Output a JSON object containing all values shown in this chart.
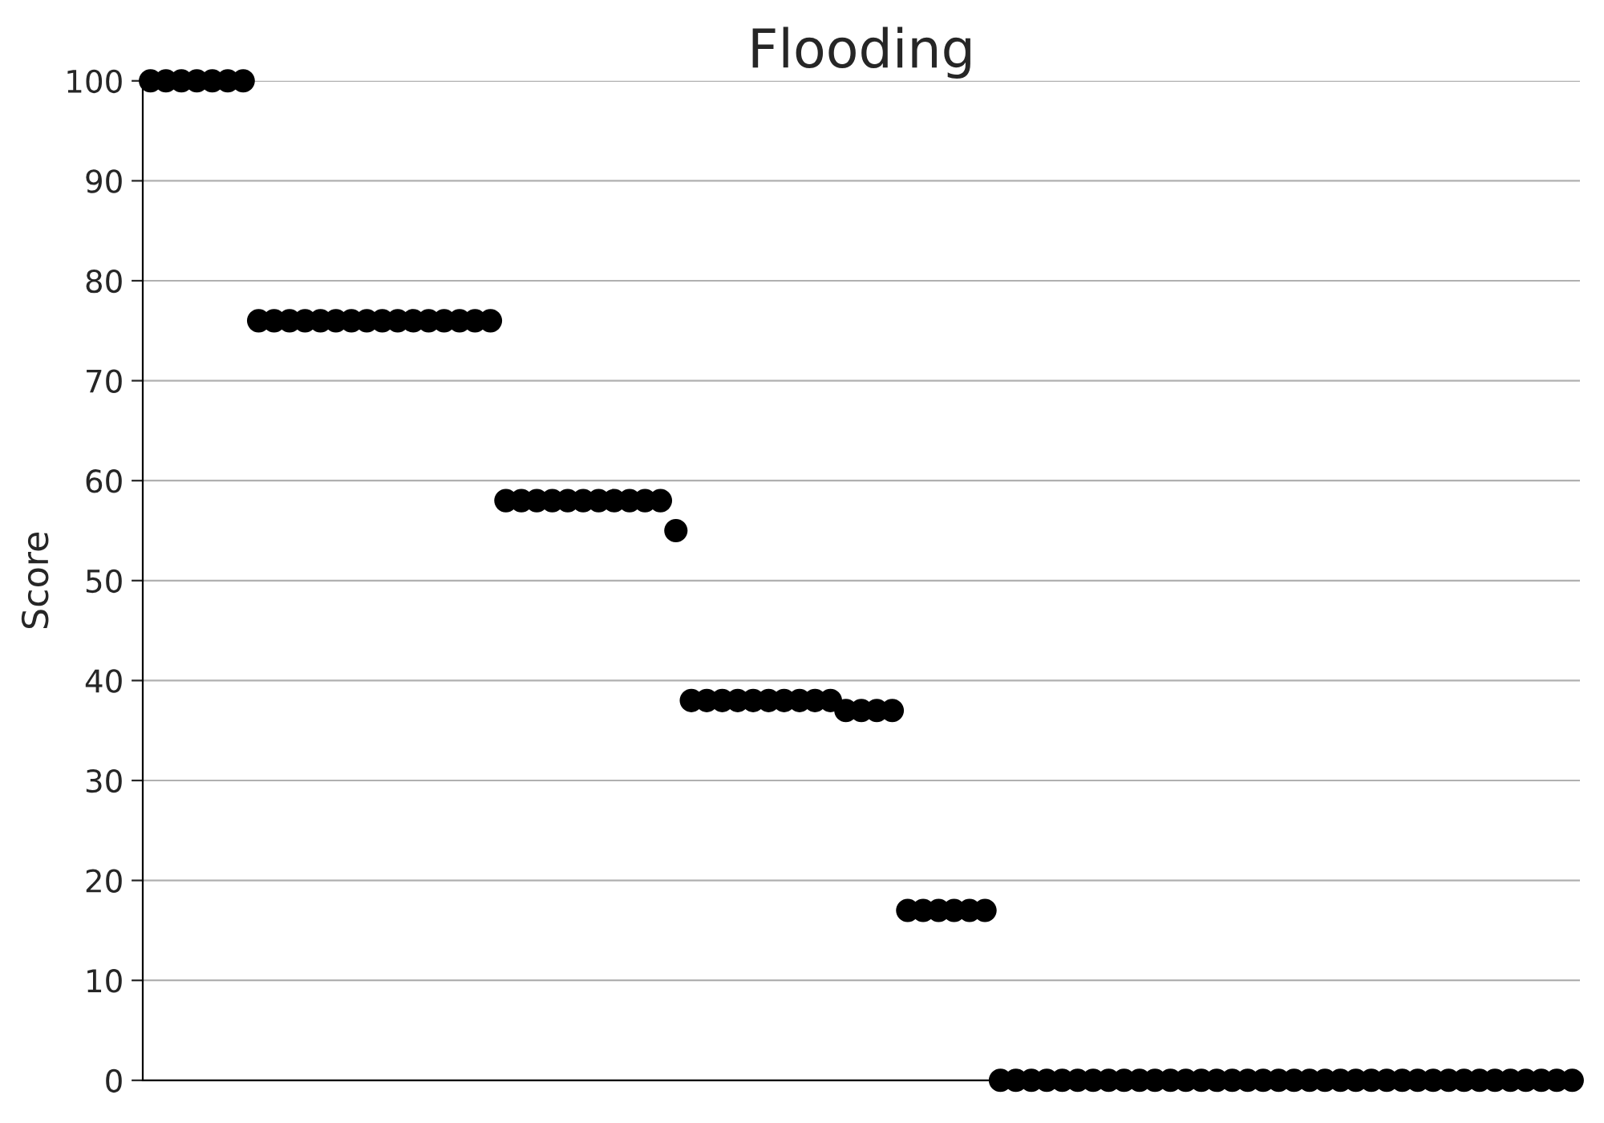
{
  "chart_data": {
    "type": "scatter",
    "title": "Flooding",
    "ylabel": "Score",
    "categories": [
      null,
      null,
      null,
      null,
      null,
      null,
      null,
      null,
      null,
      null,
      null,
      null,
      null,
      null,
      null,
      null,
      null,
      null,
      null,
      null,
      null,
      null,
      null,
      null,
      null,
      null,
      null,
      null,
      null,
      null,
      null,
      null,
      null,
      null,
      null,
      null,
      null,
      null,
      null,
      null,
      null,
      null,
      null,
      null,
      null,
      null,
      null,
      null,
      null,
      null,
      null,
      null,
      null,
      null,
      null,
      null,
      null,
      null,
      null,
      null,
      null,
      null,
      null,
      null,
      null,
      null,
      null,
      null,
      null,
      null,
      null,
      null,
      null,
      null,
      null,
      null,
      null,
      null,
      null,
      null,
      null,
      null,
      null,
      null,
      null,
      null,
      null,
      null,
      null,
      null,
      null,
      null,
      null
    ],
    "series": [
      {
        "color": "#000000",
        "values": [
          100,
          100,
          100,
          100,
          100,
          100,
          100,
          76,
          76,
          76,
          76,
          76,
          76,
          76,
          76,
          76,
          76,
          76,
          76,
          76,
          76,
          76,
          76,
          58,
          58,
          58,
          58,
          58,
          58,
          58,
          58,
          58,
          58,
          58,
          55,
          38,
          38,
          38,
          38,
          38,
          38,
          38,
          38,
          38,
          38,
          37,
          37,
          37,
          37,
          17,
          17,
          17,
          17,
          17,
          17,
          0,
          0,
          0,
          0,
          0,
          0,
          0,
          0,
          0,
          0,
          0,
          0,
          0,
          0,
          0,
          0,
          0,
          0,
          0,
          0,
          0,
          0,
          0,
          0,
          0,
          0,
          0,
          0,
          0,
          0,
          0,
          0,
          0,
          0,
          0,
          0,
          0,
          0
        ]
      }
    ],
    "ylim": [
      0,
      100
    ],
    "yticks": [
      0,
      10,
      20,
      30,
      40,
      50,
      60,
      70,
      80,
      90,
      100
    ],
    "tick_labels": "y",
    "grid": "y",
    "marker": "circle"
  }
}
